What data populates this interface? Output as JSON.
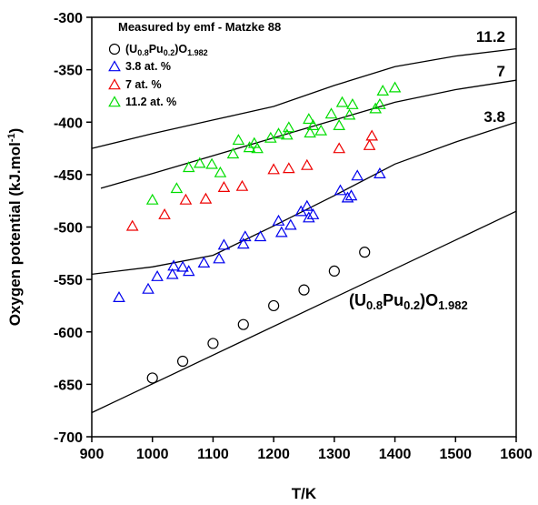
{
  "chart_data": {
    "type": "scatter",
    "title": "",
    "xlabel": "T/K",
    "ylabel": "Oxygen potential (kJ.mol-1)",
    "xlim": [
      900,
      1600
    ],
    "ylim": [
      -700,
      -300
    ],
    "x_ticks": [
      "900",
      "1000",
      "1100",
      "1200",
      "1300",
      "1400",
      "1500",
      "1600"
    ],
    "y_ticks": [
      "-300",
      "-350",
      "-400",
      "-450",
      "-500",
      "-550",
      "-600",
      "-650",
      "-700"
    ],
    "grid": false,
    "legend_placement": "top-left",
    "legend_title": "Measured by emf - Matzke 88",
    "series": [
      {
        "name": "(U0.8Pu0.2)O1.982",
        "label_main": "(U",
        "label_sub1": "0.8",
        "label_mid": "Pu",
        "label_sub2": "0.2",
        "label_close": ")O",
        "label_sub3": "1.982",
        "marker": "circle",
        "color": "#000000",
        "points": [
          [
            1000,
            -644
          ],
          [
            1050,
            -628
          ],
          [
            1100,
            -611
          ],
          [
            1150,
            -593
          ],
          [
            1200,
            -575
          ],
          [
            1250,
            -560
          ],
          [
            1300,
            -542
          ],
          [
            1350,
            -524
          ]
        ]
      },
      {
        "name": "3.8 at. %",
        "marker": "triangle",
        "color": "#0000ee",
        "points": [
          [
            945,
            -567
          ],
          [
            993,
            -559
          ],
          [
            1008,
            -547
          ],
          [
            1033,
            -545
          ],
          [
            1035,
            -537
          ],
          [
            1050,
            -538
          ],
          [
            1060,
            -542
          ],
          [
            1085,
            -534
          ],
          [
            1110,
            -530
          ],
          [
            1118,
            -517
          ],
          [
            1150,
            -516
          ],
          [
            1153,
            -509
          ],
          [
            1178,
            -509
          ],
          [
            1208,
            -494
          ],
          [
            1213,
            -505
          ],
          [
            1228,
            -498
          ],
          [
            1245,
            -485
          ],
          [
            1255,
            -480
          ],
          [
            1258,
            -491
          ],
          [
            1265,
            -488
          ],
          [
            1310,
            -465
          ],
          [
            1322,
            -472
          ],
          [
            1328,
            -470
          ],
          [
            1338,
            -451
          ],
          [
            1375,
            -449
          ]
        ]
      },
      {
        "name": "7 at. %",
        "marker": "triangle",
        "color": "#ee0000",
        "points": [
          [
            967,
            -499
          ],
          [
            1020,
            -488
          ],
          [
            1055,
            -474
          ],
          [
            1088,
            -473
          ],
          [
            1118,
            -462
          ],
          [
            1148,
            -461
          ],
          [
            1200,
            -445
          ],
          [
            1225,
            -444
          ],
          [
            1255,
            -441
          ],
          [
            1308,
            -425
          ],
          [
            1358,
            -422
          ],
          [
            1362,
            -413
          ]
        ]
      },
      {
        "name": "11.2 at. %",
        "marker": "triangle",
        "color": "#00dd00",
        "points": [
          [
            1000,
            -474
          ],
          [
            1040,
            -463
          ],
          [
            1060,
            -443
          ],
          [
            1078,
            -439
          ],
          [
            1098,
            -440
          ],
          [
            1112,
            -448
          ],
          [
            1133,
            -430
          ],
          [
            1142,
            -417
          ],
          [
            1160,
            -424
          ],
          [
            1168,
            -420
          ],
          [
            1173,
            -425
          ],
          [
            1195,
            -415
          ],
          [
            1208,
            -411
          ],
          [
            1222,
            -412
          ],
          [
            1225,
            -405
          ],
          [
            1258,
            -397
          ],
          [
            1260,
            -410
          ],
          [
            1265,
            -403
          ],
          [
            1278,
            -408
          ],
          [
            1295,
            -392
          ],
          [
            1308,
            -403
          ],
          [
            1313,
            -381
          ],
          [
            1325,
            -393
          ],
          [
            1330,
            -383
          ],
          [
            1368,
            -387
          ],
          [
            1375,
            -383
          ],
          [
            1380,
            -370
          ],
          [
            1400,
            -367
          ]
        ]
      }
    ],
    "lines": [
      {
        "label": "11.2",
        "points": [
          [
            900,
            -425
          ],
          [
            1000,
            -411
          ],
          [
            1100,
            -398
          ],
          [
            1200,
            -385
          ],
          [
            1300,
            -365
          ],
          [
            1400,
            -347
          ],
          [
            1500,
            -337
          ],
          [
            1600,
            -330
          ]
        ]
      },
      {
        "label": "7",
        "points": [
          [
            915,
            -463
          ],
          [
            1000,
            -449
          ],
          [
            1100,
            -432
          ],
          [
            1200,
            -415
          ],
          [
            1300,
            -398
          ],
          [
            1400,
            -381
          ],
          [
            1500,
            -369
          ],
          [
            1600,
            -360
          ]
        ]
      },
      {
        "label": "3.8",
        "points": [
          [
            900,
            -545
          ],
          [
            1000,
            -538
          ],
          [
            1100,
            -527
          ],
          [
            1200,
            -499
          ],
          [
            1300,
            -470
          ],
          [
            1400,
            -440
          ],
          [
            1500,
            -419
          ],
          [
            1600,
            -400
          ]
        ]
      },
      {
        "label": "(U0.8Pu0.2)O1.982",
        "points": [
          [
            900,
            -677
          ],
          [
            1600,
            -485
          ]
        ]
      }
    ]
  }
}
